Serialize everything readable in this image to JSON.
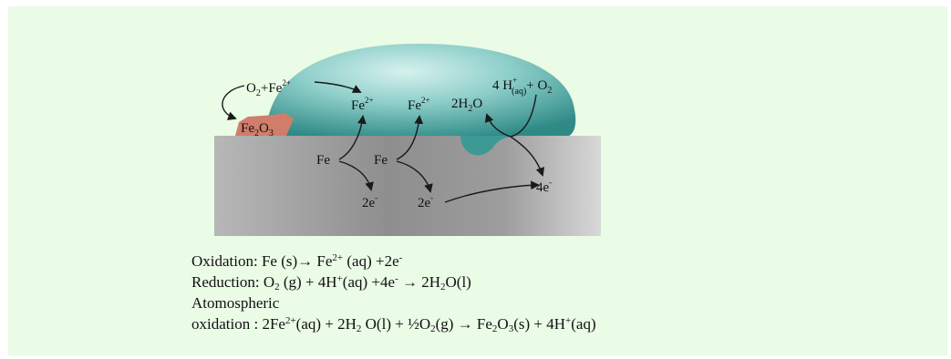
{
  "colors": {
    "panel": "#eafbe6",
    "droplet": "#4a9e9a",
    "rust": "#cf7b6b",
    "metal": "#a9a9a9",
    "arrow": "#1a1a1a"
  },
  "labels": {
    "o2_left": "O",
    "o2_left_sub": "2",
    "plus_left": "+",
    "fe_left": "Fe",
    "fe_left_sup": "2+",
    "fe2o3_a": "Fe",
    "fe2o3_sub_a": "2",
    "fe2o3_b": "O",
    "fe2o3_sub_b": "3",
    "fe2p_1": "Fe",
    "fe2p_1_sup": "2+",
    "fe2p_2": "Fe",
    "fe2p_2_sup": "2+",
    "h2o_a": "2H",
    "h2o_sub": "2",
    "h2o_b": "O",
    "h_plus_coef": "4 H",
    "h_plus_sup": "+",
    "h_plus_sub": "(aq)",
    "plus_o2": "+ O",
    "plus_o2_sub": "2",
    "fe_metal_1": "Fe",
    "fe_metal_2": "Fe",
    "e2_1": "2e",
    "e2_1_sup": "-",
    "e2_2": "2e",
    "e2_2_sup": "-",
    "e4": "4e",
    "e4_sup": "-"
  },
  "equations": {
    "ox_label": "Oxidation:",
    "ox_a": "Fe (s)→ Fe",
    "ox_sup": "2+",
    "ox_b": "(aq) +2e",
    "ox_sup2": "-",
    "red_label": "Reduction:",
    "red_a": "O",
    "red_sub": "2",
    "red_b": "(g) + 4H",
    "red_sup": "+",
    "red_c": "(aq) +4e",
    "red_sup2": "-",
    "red_d": "→ 2H",
    "red_sub2": "2",
    "red_e": "O(l)",
    "atm_label": "Atomospheric",
    "atm_label2": "oxidation :",
    "atm_a": "2Fe",
    "atm_sup": "2+",
    "atm_b": "(aq) + 2H",
    "atm_sub": "2",
    "atm_c": "O(l) + ½O",
    "atm_sub2": "2",
    "atm_d": "(g) → Fe",
    "atm_sub3": "2",
    "atm_e": "O",
    "atm_sub4": "3",
    "atm_f": "(s) + 4H",
    "atm_sup2": "+",
    "atm_g": "(aq)"
  }
}
